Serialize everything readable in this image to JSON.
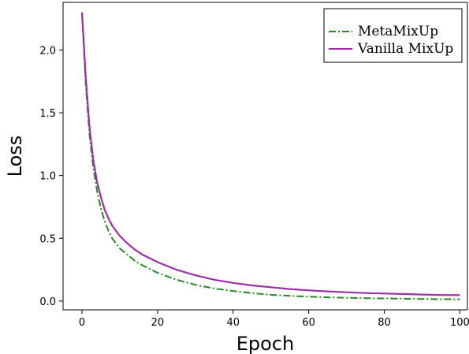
{
  "chart_data": {
    "type": "line",
    "title": "",
    "xlabel": "Epoch",
    "ylabel": "Loss",
    "xlim": [
      -5,
      102
    ],
    "ylim": [
      -0.07,
      2.38
    ],
    "xticks": [
      0,
      20,
      40,
      60,
      80,
      100
    ],
    "yticks": [
      0.0,
      0.5,
      1.0,
      1.5,
      2.0
    ],
    "ytick_labels": [
      "0.0",
      "0.5",
      "1.0",
      "1.5",
      "2.0"
    ],
    "grid": false,
    "legend_position": "top-right",
    "series": [
      {
        "name": "MetaMixUp",
        "color": "#228b22",
        "style": "dashdot",
        "x": [
          0,
          1,
          2,
          3,
          4,
          5,
          6,
          7,
          8,
          10,
          12,
          14,
          16,
          18,
          20,
          25,
          30,
          35,
          40,
          45,
          50,
          55,
          60,
          65,
          70,
          75,
          80,
          85,
          90,
          95,
          100
        ],
        "y": [
          2.3,
          1.72,
          1.32,
          1.06,
          0.88,
          0.74,
          0.64,
          0.56,
          0.5,
          0.42,
          0.37,
          0.32,
          0.285,
          0.255,
          0.225,
          0.17,
          0.13,
          0.1,
          0.08,
          0.063,
          0.05,
          0.042,
          0.035,
          0.03,
          0.026,
          0.023,
          0.021,
          0.019,
          0.017,
          0.015,
          0.014
        ]
      },
      {
        "name": "Vanilla MixUp",
        "color": "#9b30a8",
        "style": "solid",
        "x": [
          0,
          1,
          2,
          3,
          4,
          5,
          6,
          7,
          8,
          10,
          12,
          14,
          16,
          18,
          20,
          25,
          30,
          35,
          40,
          45,
          50,
          55,
          60,
          65,
          70,
          75,
          80,
          85,
          90,
          95,
          100
        ],
        "y": [
          2.3,
          1.78,
          1.38,
          1.12,
          0.95,
          0.83,
          0.73,
          0.66,
          0.6,
          0.52,
          0.46,
          0.41,
          0.37,
          0.34,
          0.31,
          0.25,
          0.205,
          0.17,
          0.145,
          0.125,
          0.11,
          0.096,
          0.085,
          0.077,
          0.07,
          0.064,
          0.06,
          0.056,
          0.052,
          0.048,
          0.047
        ]
      }
    ]
  }
}
